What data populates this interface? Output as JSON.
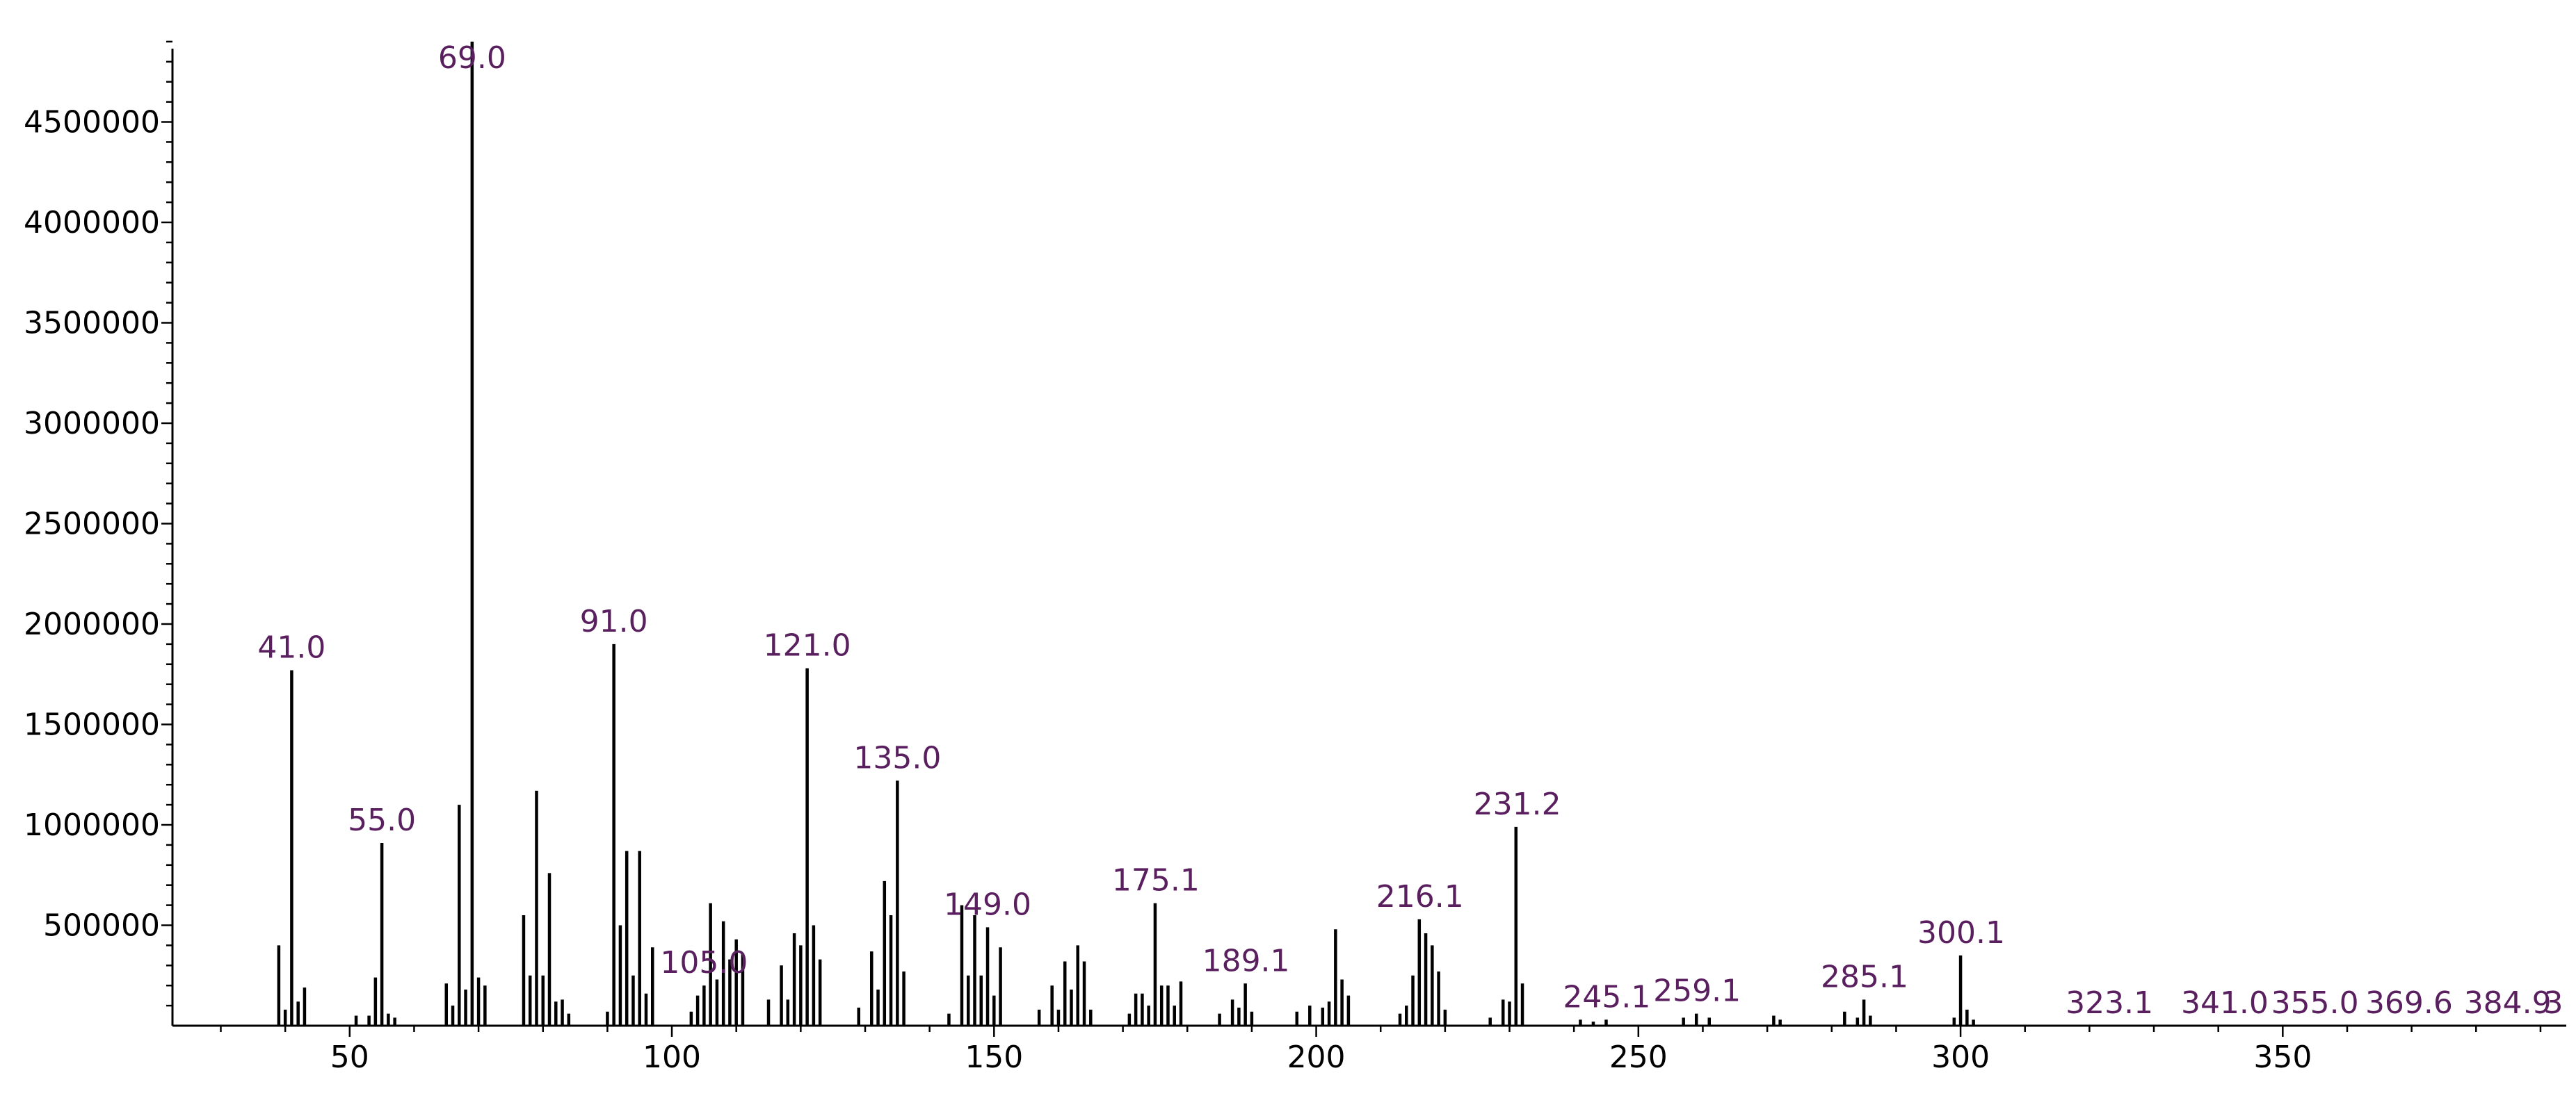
{
  "chart_data": {
    "type": "bar",
    "title": "",
    "xlabel": "",
    "ylabel": "",
    "xlim": [
      22.5,
      394
    ],
    "ylim": [
      0,
      5000000
    ],
    "grid": false,
    "colors": {
      "bar": "#000000",
      "peak_label": "#5a1f5f",
      "axis": "#000000"
    },
    "y_ticks": [
      {
        "value": 500000,
        "label": "500000"
      },
      {
        "value": 1000000,
        "label": "1000000"
      },
      {
        "value": 1500000,
        "label": "1500000"
      },
      {
        "value": 2000000,
        "label": "2000000"
      },
      {
        "value": 2500000,
        "label": "2500000"
      },
      {
        "value": 3000000,
        "label": "3000000"
      },
      {
        "value": 3500000,
        "label": "3500000"
      },
      {
        "value": 4000000,
        "label": "4000000"
      },
      {
        "value": 4500000,
        "label": "4500000"
      }
    ],
    "x_ticks": [
      {
        "value": 50,
        "label": "50"
      },
      {
        "value": 100,
        "label": "100"
      },
      {
        "value": 150,
        "label": "150"
      },
      {
        "value": 200,
        "label": "200"
      },
      {
        "value": 250,
        "label": "250"
      },
      {
        "value": 300,
        "label": "300"
      },
      {
        "value": 350,
        "label": "350"
      }
    ],
    "peak_labels": [
      {
        "x": 41.0,
        "label": "41.0"
      },
      {
        "x": 55.0,
        "label": "55.0"
      },
      {
        "x": 69.0,
        "label": "69.0"
      },
      {
        "x": 91.0,
        "label": "91.0"
      },
      {
        "x": 105.0,
        "label": "105.0"
      },
      {
        "x": 121.0,
        "label": "121.0"
      },
      {
        "x": 135.0,
        "label": "135.0"
      },
      {
        "x": 149.0,
        "label": "149.0"
      },
      {
        "x": 175.1,
        "label": "175.1"
      },
      {
        "x": 189.1,
        "label": "189.1"
      },
      {
        "x": 216.1,
        "label": "216.1"
      },
      {
        "x": 231.2,
        "label": "231.2"
      },
      {
        "x": 245.1,
        "label": "245.1"
      },
      {
        "x": 259.1,
        "label": "259.1"
      },
      {
        "x": 285.1,
        "label": "285.1"
      },
      {
        "x": 300.1,
        "label": "300.1"
      },
      {
        "x": 323.1,
        "label": "323.1"
      },
      {
        "x": 341.0,
        "label": "341.0"
      },
      {
        "x": 355.0,
        "label": "355.0"
      },
      {
        "x": 369.6,
        "label": "369.6"
      },
      {
        "x": 384.9,
        "label": "384.9"
      },
      {
        "x": 392.0,
        "label": "3"
      }
    ],
    "x": [
      39,
      40,
      41,
      42,
      43,
      51,
      53,
      54,
      55,
      56,
      57,
      65,
      66,
      67,
      68,
      69,
      70,
      71,
      77,
      78,
      79,
      80,
      81,
      82,
      83,
      84,
      90,
      91,
      92,
      93,
      94,
      95,
      96,
      97,
      103,
      104,
      105,
      106,
      107,
      108,
      109,
      110,
      111,
      115,
      117,
      118,
      119,
      120,
      121,
      122,
      123,
      129,
      131,
      132,
      133,
      134,
      135,
      136,
      143,
      145,
      146,
      147,
      148,
      149,
      150,
      151,
      157,
      159,
      160,
      161,
      162,
      163,
      164,
      165,
      171,
      172,
      173,
      174,
      175,
      176,
      177,
      178,
      179,
      185,
      187,
      188,
      189,
      190,
      197,
      199,
      201,
      202,
      203,
      204,
      205,
      213,
      214,
      215,
      216,
      217,
      218,
      219,
      220,
      227,
      229,
      230,
      231,
      232,
      241,
      243,
      245,
      257,
      259,
      261,
      271,
      272,
      282,
      284,
      285,
      286,
      299,
      300,
      301,
      302
    ],
    "values": [
      400000,
      80000,
      1770000,
      120000,
      190000,
      50000,
      50000,
      240000,
      910000,
      60000,
      40000,
      210000,
      100000,
      1100000,
      180000,
      4900000,
      240000,
      200000,
      550000,
      250000,
      1170000,
      250000,
      760000,
      120000,
      130000,
      60000,
      70000,
      1900000,
      500000,
      870000,
      250000,
      870000,
      160000,
      390000,
      70000,
      150000,
      200000,
      610000,
      230000,
      520000,
      330000,
      430000,
      360000,
      130000,
      300000,
      130000,
      460000,
      400000,
      1780000,
      500000,
      330000,
      90000,
      370000,
      180000,
      720000,
      550000,
      1220000,
      270000,
      60000,
      600000,
      250000,
      550000,
      250000,
      490000,
      150000,
      390000,
      80000,
      200000,
      80000,
      320000,
      180000,
      400000,
      320000,
      80000,
      60000,
      160000,
      160000,
      100000,
      610000,
      200000,
      200000,
      100000,
      220000,
      60000,
      130000,
      90000,
      210000,
      70000,
      70000,
      100000,
      90000,
      120000,
      480000,
      230000,
      150000,
      60000,
      100000,
      250000,
      530000,
      460000,
      400000,
      270000,
      80000,
      40000,
      130000,
      120000,
      990000,
      210000,
      30000,
      20000,
      30000,
      40000,
      60000,
      40000,
      50000,
      30000,
      70000,
      40000,
      130000,
      50000,
      40000,
      350000,
      80000,
      30000
    ]
  }
}
